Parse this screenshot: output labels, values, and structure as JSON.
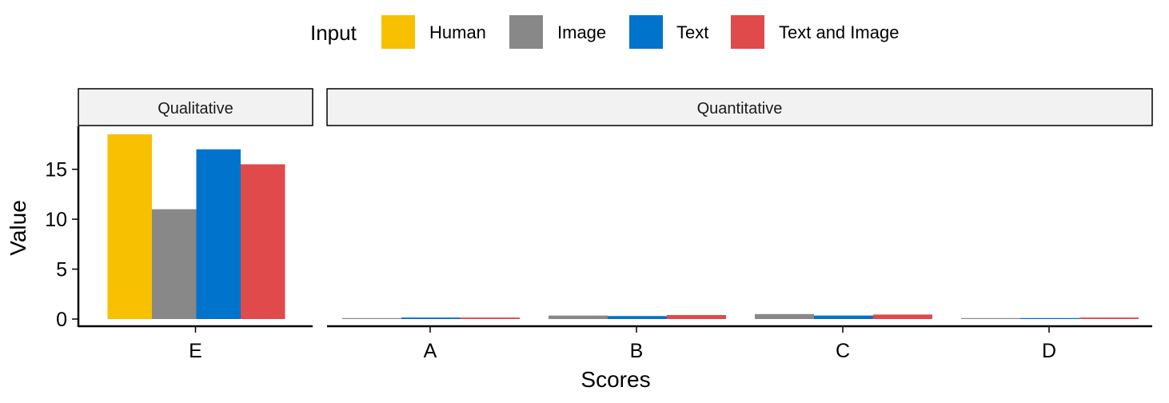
{
  "chart_data": {
    "type": "bar",
    "xlabel": "Scores",
    "ylabel": "Value",
    "ylim": [
      0,
      19
    ],
    "yticks": [
      0,
      5,
      10,
      15
    ],
    "legend": {
      "title": "Input",
      "placement": "top",
      "entries": [
        "Human",
        "Image",
        "Text",
        "Text and Image"
      ]
    },
    "colors": {
      "Human": "#F7C000",
      "Image": "#888888",
      "Text": "#0073CC",
      "Text and Image": "#E04A4A"
    },
    "panels": [
      {
        "label": "Qualitative",
        "categories": [
          "E"
        ],
        "series": [
          {
            "name": "Human",
            "values": [
              18.5
            ]
          },
          {
            "name": "Image",
            "values": [
              11
            ]
          },
          {
            "name": "Text",
            "values": [
              17
            ]
          },
          {
            "name": "Text and Image",
            "values": [
              15.5
            ]
          }
        ]
      },
      {
        "label": "Quantitative",
        "categories": [
          "A",
          "B",
          "C",
          "D"
        ],
        "series": [
          {
            "name": "Image",
            "values": [
              0.08,
              0.35,
              0.5,
              0.05
            ]
          },
          {
            "name": "Text",
            "values": [
              0.15,
              0.3,
              0.35,
              0.1
            ]
          },
          {
            "name": "Text and Image",
            "values": [
              0.15,
              0.4,
              0.45,
              0.15
            ]
          }
        ]
      }
    ]
  }
}
